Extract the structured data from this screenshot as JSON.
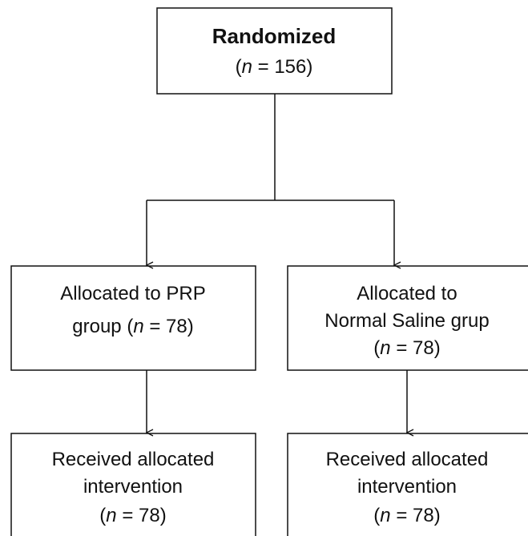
{
  "nodes": [
    {
      "lines": [
        [
          {
            "text": "Randomized",
            "bold": true
          }
        ],
        [
          {
            "text": "("
          },
          {
            "text": "n",
            "italic": true
          },
          {
            "text": " = 156)"
          }
        ]
      ]
    },
    {
      "lines": [
        [
          {
            "text": "Allocated to PRP"
          }
        ],
        [
          {
            "text": "group ("
          },
          {
            "text": "n",
            "italic": true
          },
          {
            "text": " = 78)"
          }
        ]
      ]
    },
    {
      "lines": [
        [
          {
            "text": "Allocated to"
          }
        ],
        [
          {
            "text": "Normal Saline grup"
          }
        ],
        [
          {
            "text": "("
          },
          {
            "text": "n",
            "italic": true
          },
          {
            "text": " = 78)"
          }
        ]
      ]
    },
    {
      "lines": [
        [
          {
            "text": "Received allocated"
          }
        ],
        [
          {
            "text": "intervention"
          }
        ],
        [
          {
            "text": "("
          },
          {
            "text": "n",
            "italic": true
          },
          {
            "text": " = 78)"
          }
        ]
      ]
    },
    {
      "lines": [
        [
          {
            "text": "Received allocated"
          }
        ],
        [
          {
            "text": "intervention"
          }
        ],
        [
          {
            "text": "("
          },
          {
            "text": "n",
            "italic": true
          },
          {
            "text": " = 78)"
          }
        ]
      ]
    }
  ]
}
